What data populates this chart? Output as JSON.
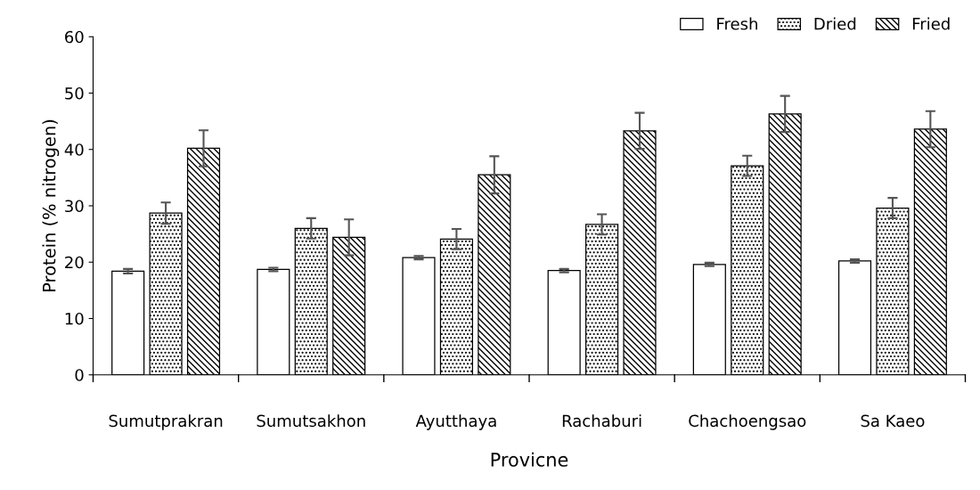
{
  "chart_data": {
    "type": "bar",
    "xlabel": "Provicne",
    "ylabel": "Protein (% nitrogen)",
    "categories": [
      "Sumutprakran",
      "Sumutsakhon",
      "Ayutthaya",
      "Rachaburi",
      "Chachoengsao",
      "Sa Kaeo"
    ],
    "series": [
      {
        "name": "Fresh",
        "color": "#ffffff",
        "values": [
          18.4,
          18.7,
          20.8,
          18.5,
          19.6,
          20.2
        ],
        "errors": [
          0.4,
          0.3,
          0.3,
          0.3,
          0.3,
          0.3
        ]
      },
      {
        "name": "Dried",
        "color": "#000000",
        "values": [
          28.7,
          26.0,
          24.1,
          26.7,
          37.1,
          29.6
        ],
        "errors": [
          1.9,
          1.8,
          1.8,
          1.8,
          1.8,
          1.8
        ]
      },
      {
        "name": "Fried",
        "color": "#000000",
        "values": [
          40.2,
          24.4,
          35.5,
          43.3,
          46.3,
          43.6
        ],
        "errors": [
          3.2,
          3.2,
          3.3,
          3.2,
          3.2,
          3.2
        ]
      }
    ],
    "ylim": [
      0,
      60
    ],
    "yticks": [
      0,
      10,
      20,
      30,
      40,
      50,
      60
    ],
    "grid": false,
    "legend": "top right"
  }
}
